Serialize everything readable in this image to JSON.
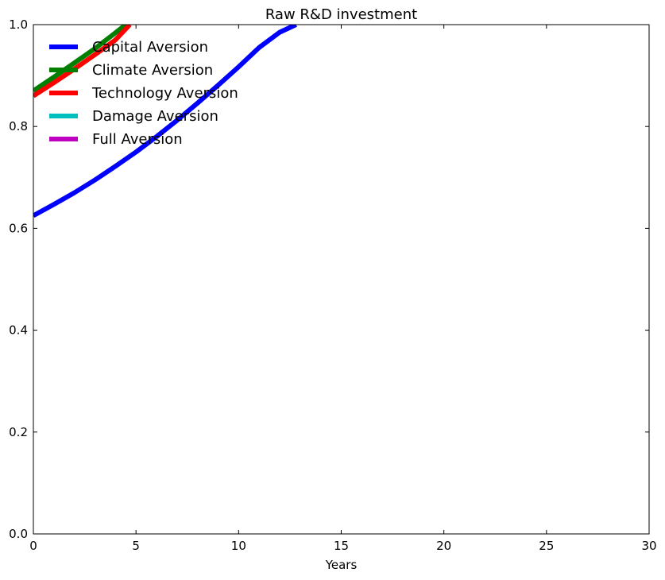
{
  "chart_data": {
    "type": "line",
    "title": "Raw R&D investment",
    "xlabel": "Years",
    "ylabel": "",
    "xlim": [
      0,
      30
    ],
    "ylim": [
      0,
      1.0
    ],
    "xticks": [
      0,
      5,
      10,
      15,
      20,
      25,
      30
    ],
    "xtick_labels": [
      "0",
      "5",
      "10",
      "15",
      "20",
      "25",
      "30"
    ],
    "yticks": [
      0.0,
      0.2,
      0.4,
      0.6,
      0.8,
      1.0
    ],
    "ytick_labels": [
      "0.0",
      "0.2",
      "0.4",
      "0.6",
      "0.8",
      "1.0"
    ],
    "grid": false,
    "legend_position": "top-left",
    "series": [
      {
        "name": "Capital Aversion",
        "color": "#0000ff",
        "x": [
          0,
          1,
          2,
          3,
          4,
          5,
          6,
          7,
          8,
          9,
          10,
          11,
          12,
          12.8
        ],
        "y": [
          0.625,
          0.647,
          0.67,
          0.695,
          0.722,
          0.75,
          0.78,
          0.812,
          0.846,
          0.881,
          0.917,
          0.955,
          0.985,
          1.0
        ]
      },
      {
        "name": "Climate Aversion",
        "color": "#007f00",
        "x": [
          0,
          1,
          2,
          3,
          4,
          4.5
        ],
        "y": [
          0.87,
          0.897,
          0.925,
          0.953,
          0.984,
          1.0
        ]
      },
      {
        "name": "Technology Aversion",
        "color": "#ff0000",
        "x": [
          0,
          1,
          2,
          3,
          4,
          4.7
        ],
        "y": [
          0.86,
          0.886,
          0.913,
          0.941,
          0.97,
          1.0
        ]
      },
      {
        "name": "Damage Aversion",
        "color": "#00bfbf",
        "x": [],
        "y": []
      },
      {
        "name": "Full Aversion",
        "color": "#bf00bf",
        "x": [],
        "y": []
      }
    ]
  }
}
